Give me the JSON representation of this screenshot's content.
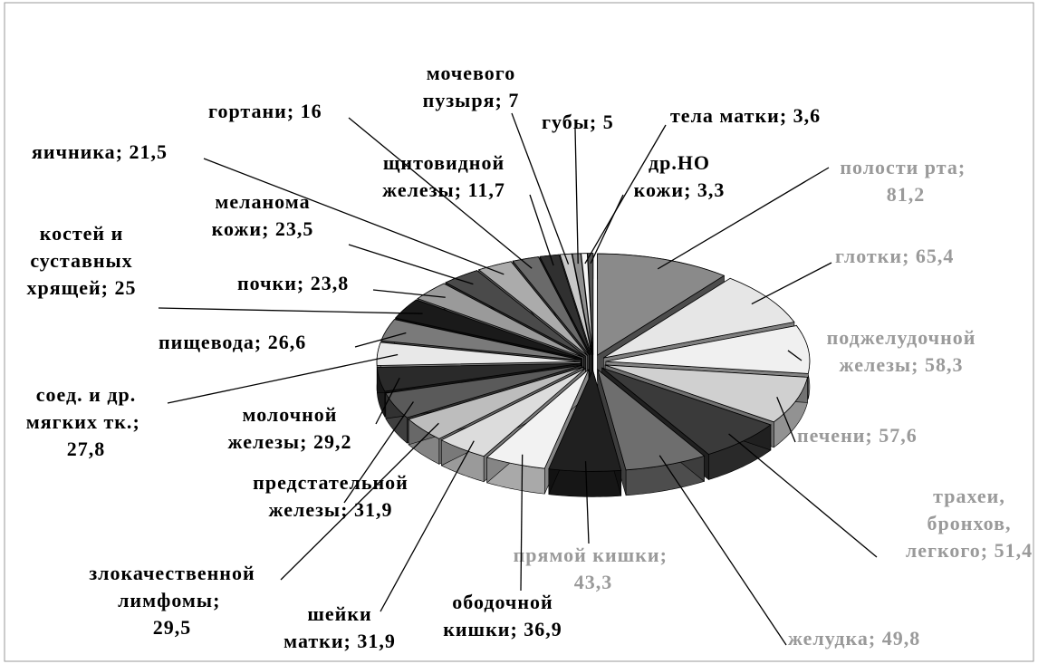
{
  "chart_data": {
    "type": "pie",
    "categories": [
      "полости рта",
      "глотки",
      "поджелудочной железы",
      "печени",
      "трахеи, бронхов, легкого",
      "желудка",
      "прямой кишки",
      "ободочной кишки",
      "шейки матки",
      "злокачественной лимфомы",
      "предстательной железы",
      "молочной железы",
      "соед. и др. мягких тк.",
      "пищевода",
      "костей и суставных хрящей",
      "почки",
      "меланома кожи",
      "яичника",
      "гортани",
      "щитовидной железы",
      "мочевого пузыря",
      "губы",
      "тела матки",
      "др.НО кожи"
    ],
    "values": [
      81.2,
      65.4,
      58.3,
      57.6,
      51.4,
      49.8,
      43.3,
      36.9,
      31.9,
      29.5,
      31.9,
      29.2,
      27.8,
      26.6,
      25,
      23.8,
      23.5,
      21.5,
      16,
      11.7,
      7,
      5,
      3.6,
      3.3
    ],
    "value_labels": [
      "81,2",
      "65,4",
      "58,3",
      "57,6",
      "51,4",
      "49,8",
      "43,3",
      "36,9",
      "31,9",
      "29,5",
      "31,9",
      "29,2",
      "27,8",
      "26,6",
      "25",
      "23,8",
      "23,5",
      "21,5",
      "16",
      "11,7",
      "7",
      "5",
      "3,6",
      "3,3"
    ],
    "label_separator": "; ",
    "colors": [
      "#8a8a8a",
      "#e6e6e6",
      "#f0f0f0",
      "#d0d0d0",
      "#3a3a3a",
      "#6e6e6e",
      "#202020",
      "#f2f2f2",
      "#dcdcdc",
      "#bdbdbd",
      "#5a5a5a",
      "#2a2a2a",
      "#e8e8e8",
      "#7a7a7a",
      "#1a1a1a",
      "#9a9a9a",
      "#4a4a4a",
      "#ababab",
      "#6a6a6a",
      "#303030",
      "#c8c8c8",
      "#8f8f8f",
      "#f5f5f5",
      "#555555"
    ],
    "label_colors": [
      "#9a9a9a",
      "#9a9a9a",
      "#9a9a9a",
      "#9a9a9a",
      "#9a9a9a",
      "#9a9a9a",
      "#9a9a9a",
      "#000000",
      "#000000",
      "#000000",
      "#000000",
      "#000000",
      "#000000",
      "#000000",
      "#000000",
      "#000000",
      "#000000",
      "#000000",
      "#000000",
      "#000000",
      "#000000",
      "#000000",
      "#000000",
      "#000000"
    ]
  }
}
